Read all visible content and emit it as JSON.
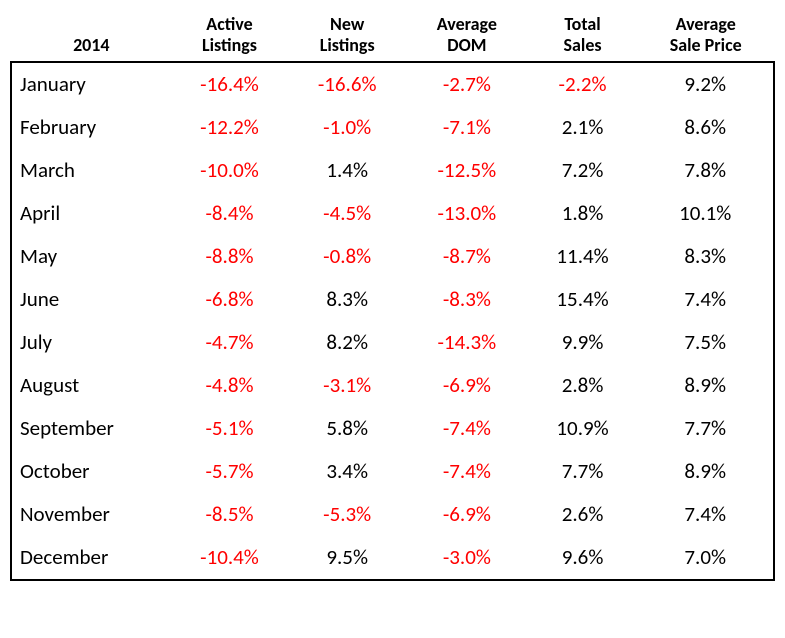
{
  "type": "table",
  "background_color": "#ffffff",
  "text_color": "#000000",
  "negative_color": "#ff0000",
  "border_color": "#000000",
  "header_fontsize": 18,
  "body_fontsize": 21,
  "year_label": "2014",
  "columns": [
    {
      "line1": "Active",
      "line2": "Listings"
    },
    {
      "line1": "New",
      "line2": "Listings"
    },
    {
      "line1": "Average",
      "line2": "DOM"
    },
    {
      "line1": "Total",
      "line2": "Sales"
    },
    {
      "line1": "Average",
      "line2": "Sale Price"
    }
  ],
  "rows": [
    {
      "month": "January",
      "cells": [
        {
          "v": "-16.4%",
          "neg": true
        },
        {
          "v": "-16.6%",
          "neg": true
        },
        {
          "v": "-2.7%",
          "neg": true
        },
        {
          "v": "-2.2%",
          "neg": true
        },
        {
          "v": "9.2%",
          "neg": false
        }
      ]
    },
    {
      "month": "February",
      "cells": [
        {
          "v": "-12.2%",
          "neg": true
        },
        {
          "v": "-1.0%",
          "neg": true
        },
        {
          "v": "-7.1%",
          "neg": true
        },
        {
          "v": "2.1%",
          "neg": false
        },
        {
          "v": "8.6%",
          "neg": false
        }
      ]
    },
    {
      "month": "March",
      "cells": [
        {
          "v": "-10.0%",
          "neg": true
        },
        {
          "v": "1.4%",
          "neg": false
        },
        {
          "v": "-12.5%",
          "neg": true
        },
        {
          "v": "7.2%",
          "neg": false
        },
        {
          "v": "7.8%",
          "neg": false
        }
      ]
    },
    {
      "month": "April",
      "cells": [
        {
          "v": "-8.4%",
          "neg": true
        },
        {
          "v": "-4.5%",
          "neg": true
        },
        {
          "v": "-13.0%",
          "neg": true
        },
        {
          "v": "1.8%",
          "neg": false
        },
        {
          "v": "10.1%",
          "neg": false
        }
      ]
    },
    {
      "month": "May",
      "cells": [
        {
          "v": "-8.8%",
          "neg": true
        },
        {
          "v": "-0.8%",
          "neg": true
        },
        {
          "v": "-8.7%",
          "neg": true
        },
        {
          "v": "11.4%",
          "neg": false
        },
        {
          "v": "8.3%",
          "neg": false
        }
      ]
    },
    {
      "month": "June",
      "cells": [
        {
          "v": "-6.8%",
          "neg": true
        },
        {
          "v": "8.3%",
          "neg": false
        },
        {
          "v": "-8.3%",
          "neg": true
        },
        {
          "v": "15.4%",
          "neg": false
        },
        {
          "v": "7.4%",
          "neg": false
        }
      ]
    },
    {
      "month": "July",
      "cells": [
        {
          "v": "-4.7%",
          "neg": true
        },
        {
          "v": "8.2%",
          "neg": false
        },
        {
          "v": "-14.3%",
          "neg": true
        },
        {
          "v": "9.9%",
          "neg": false
        },
        {
          "v": "7.5%",
          "neg": false
        }
      ]
    },
    {
      "month": "August",
      "cells": [
        {
          "v": "-4.8%",
          "neg": true
        },
        {
          "v": "-3.1%",
          "neg": true
        },
        {
          "v": "-6.9%",
          "neg": true
        },
        {
          "v": "2.8%",
          "neg": false
        },
        {
          "v": "8.9%",
          "neg": false
        }
      ]
    },
    {
      "month": "September",
      "cells": [
        {
          "v": "-5.1%",
          "neg": true
        },
        {
          "v": "5.8%",
          "neg": false
        },
        {
          "v": "-7.4%",
          "neg": true
        },
        {
          "v": "10.9%",
          "neg": false
        },
        {
          "v": "7.7%",
          "neg": false
        }
      ]
    },
    {
      "month": "October",
      "cells": [
        {
          "v": "-5.7%",
          "neg": true
        },
        {
          "v": "3.4%",
          "neg": false
        },
        {
          "v": "-7.4%",
          "neg": true
        },
        {
          "v": "7.7%",
          "neg": false
        },
        {
          "v": "8.9%",
          "neg": false
        }
      ]
    },
    {
      "month": "November",
      "cells": [
        {
          "v": "-8.5%",
          "neg": true
        },
        {
          "v": "-5.3%",
          "neg": true
        },
        {
          "v": "-6.9%",
          "neg": true
        },
        {
          "v": "2.6%",
          "neg": false
        },
        {
          "v": "7.4%",
          "neg": false
        }
      ]
    },
    {
      "month": "December",
      "cells": [
        {
          "v": "-10.4%",
          "neg": true
        },
        {
          "v": "9.5%",
          "neg": false
        },
        {
          "v": "-3.0%",
          "neg": true
        },
        {
          "v": "9.6%",
          "neg": false
        },
        {
          "v": "7.0%",
          "neg": false
        }
      ]
    }
  ]
}
